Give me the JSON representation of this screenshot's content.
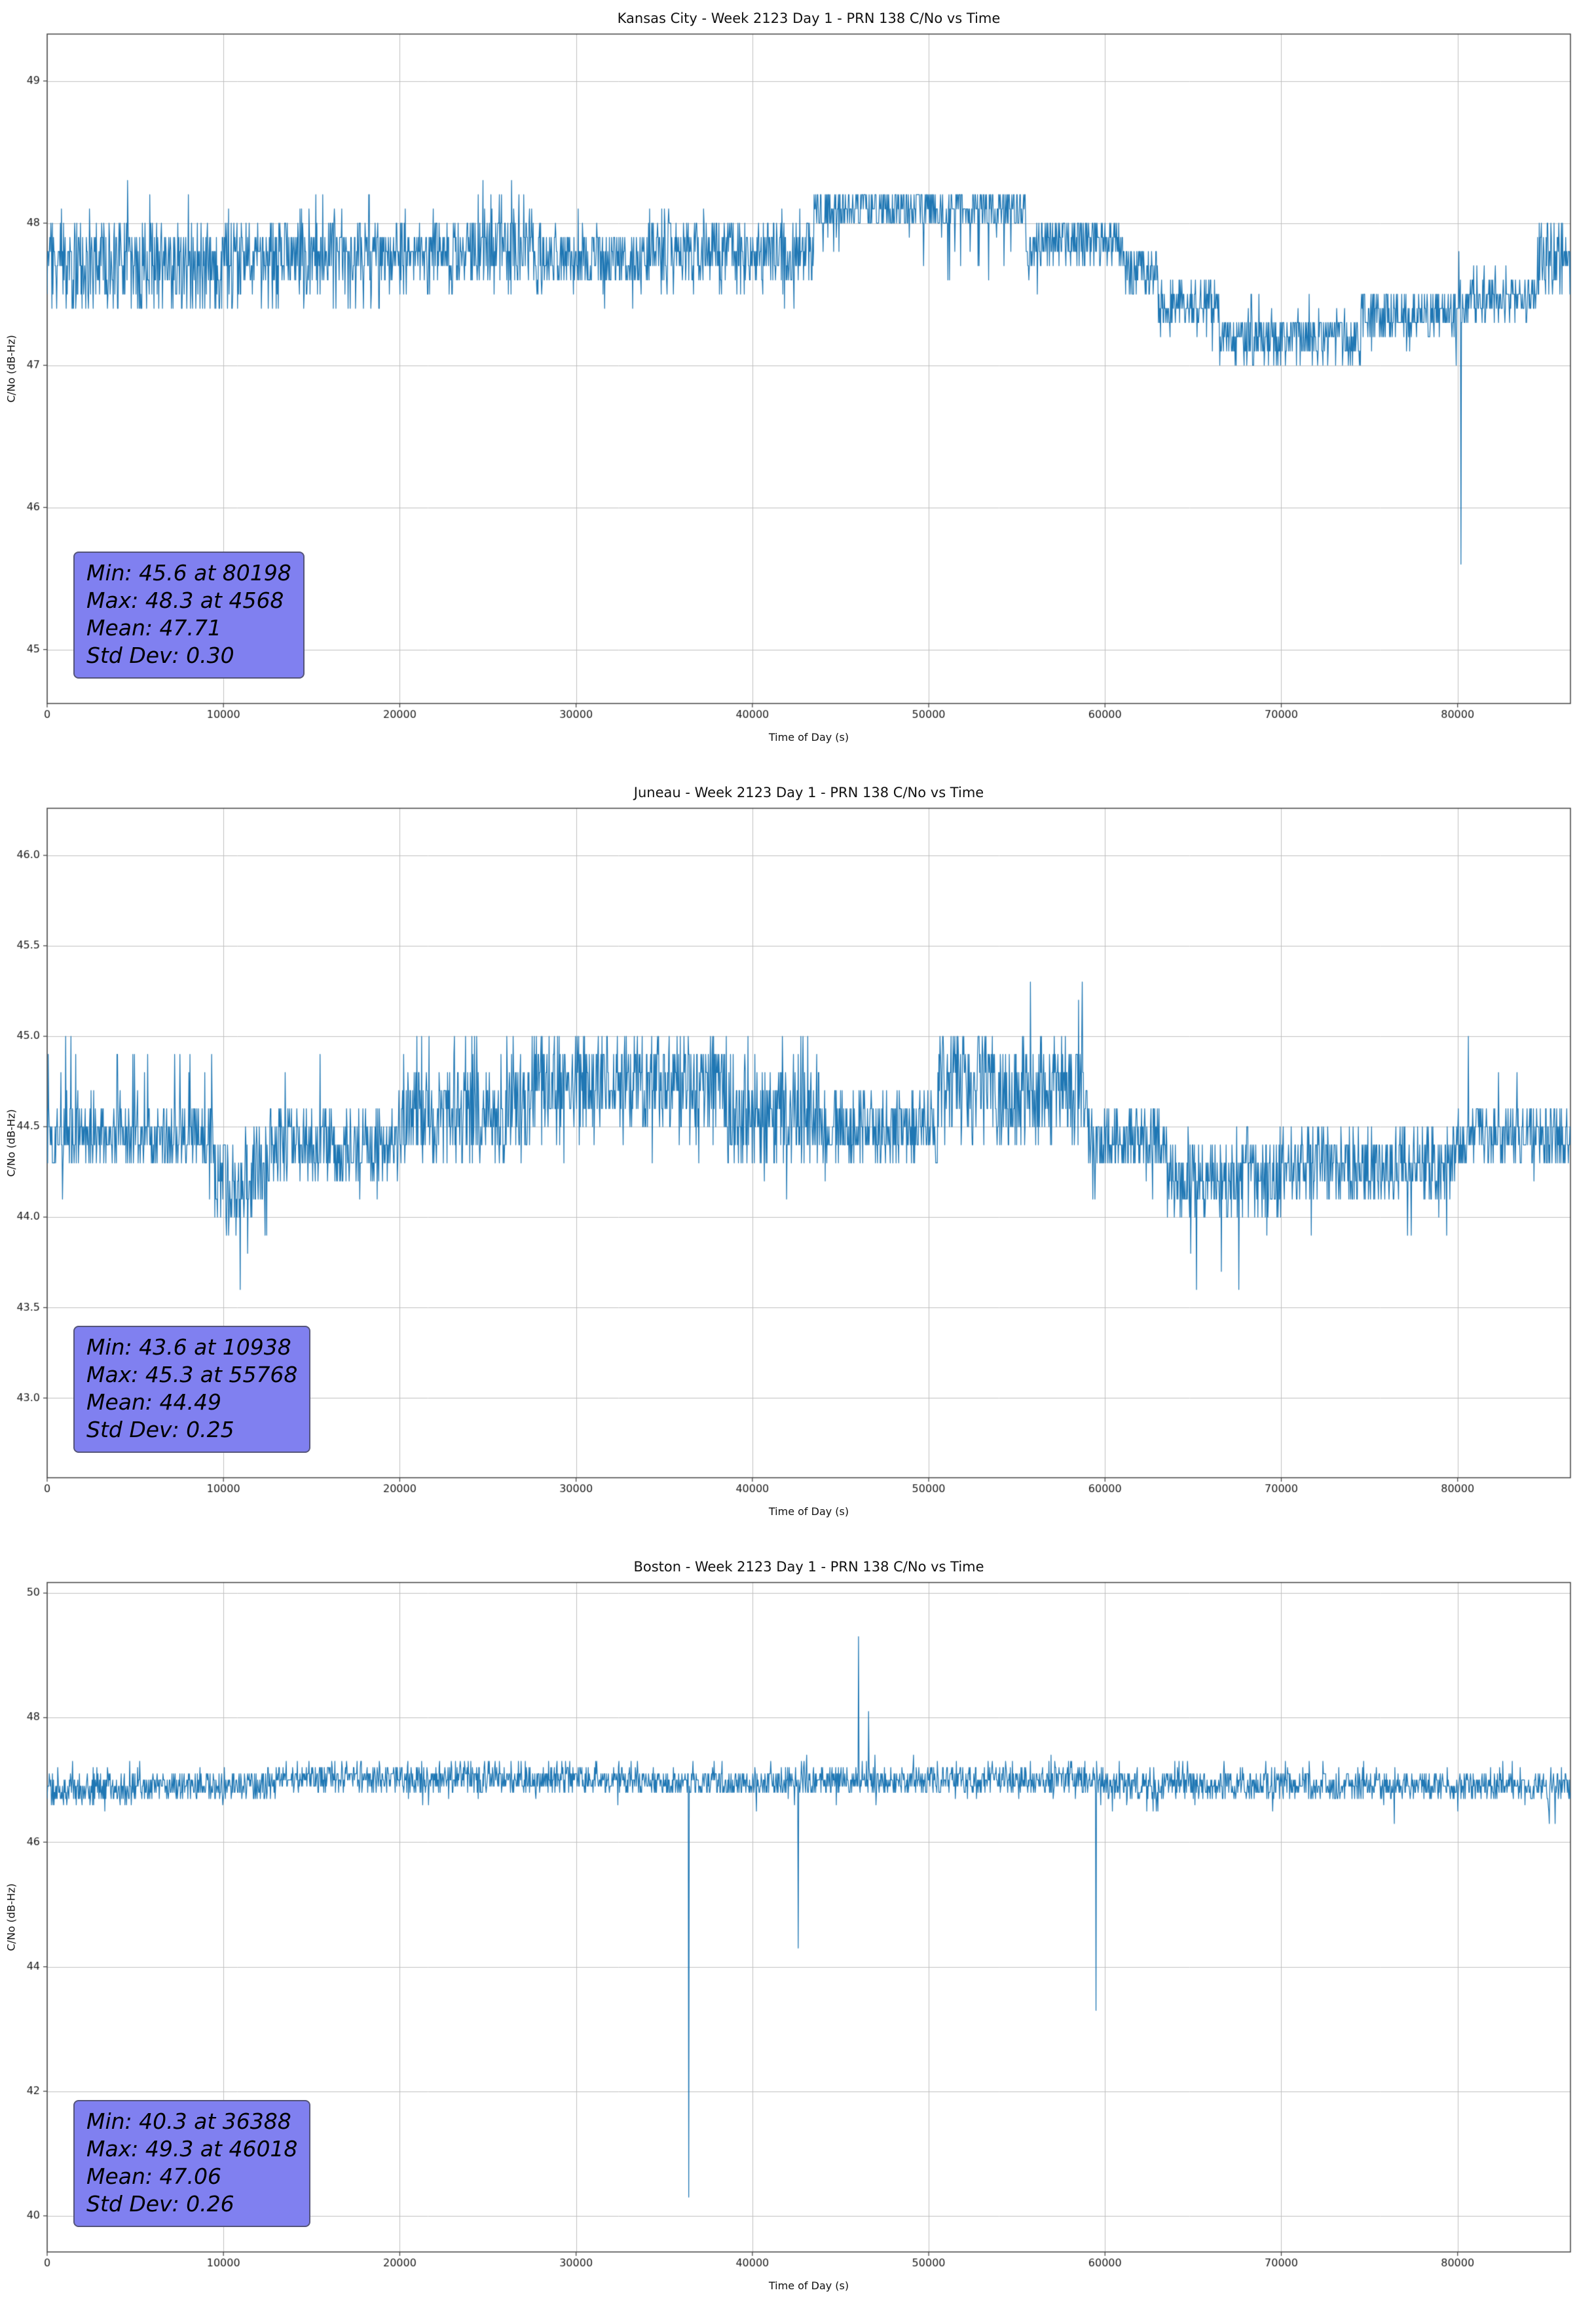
{
  "page": {
    "background": "#ffffff"
  },
  "style": {
    "accent_line": "#1f77b4",
    "grid_color": "#c0c0c0",
    "axis_color": "#444444",
    "tick_label_color": "#1a1a1a",
    "stats_box_bg": "#8080f0",
    "stats_box_border": "#55557a"
  },
  "chart_data": [
    {
      "id": "kansas-city",
      "type": "line",
      "title": "Kansas City - Week 2123 Day 1 - PRN 138 C/No vs Time",
      "xlabel": "Time of Day (s)",
      "ylabel": "C/No (dB-Hz)",
      "x_range": [
        0,
        86400
      ],
      "y_range": [
        44.62,
        49.33
      ],
      "xticks": [
        0,
        10000,
        20000,
        30000,
        40000,
        50000,
        60000,
        70000,
        80000
      ],
      "xtick_labels": [
        "0",
        "10000",
        "20000",
        "30000",
        "40000",
        "50000",
        "60000",
        "70000",
        "80000"
      ],
      "yticks": [
        45,
        46,
        47,
        48,
        49
      ],
      "ytick_labels": [
        "45",
        "46",
        "47",
        "48",
        "49"
      ],
      "line_color": "#1f77b4",
      "quantize": 0.1,
      "sample_step": 30,
      "grid": true,
      "stats": {
        "min": 45.6,
        "min_time": 80198,
        "max": 48.3,
        "max_time": 4568,
        "mean": 47.71,
        "std_dev": 0.3,
        "lines": [
          "Min: 45.6 at 80198",
          "Max: 48.3 at 4568",
          "Mean: 47.71",
          "Std Dev: 0.30"
        ]
      },
      "segments": [
        {
          "x0": 0,
          "x1": 11000,
          "lo": 47.6,
          "hi": 48.0,
          "down": 47.35,
          "down_p": 0.25,
          "up": 48.25,
          "up_p": 0.02
        },
        {
          "x0": 11000,
          "x1": 24000,
          "lo": 47.6,
          "hi": 48.0,
          "down": 47.4,
          "down_p": 0.12,
          "up": 48.25,
          "up_p": 0.03
        },
        {
          "x0": 24000,
          "x1": 28000,
          "lo": 47.6,
          "hi": 48.05,
          "down": 47.45,
          "down_p": 0.06,
          "up": 48.3,
          "up_p": 0.1
        },
        {
          "x0": 28000,
          "x1": 34000,
          "lo": 47.55,
          "hi": 47.95,
          "down": 47.4,
          "down_p": 0.04,
          "up": 48.1,
          "up_p": 0.02
        },
        {
          "x0": 34000,
          "x1": 43500,
          "lo": 47.6,
          "hi": 48.0,
          "down": 47.4,
          "down_p": 0.05,
          "up": 48.1,
          "up_p": 0.03
        },
        {
          "x0": 43500,
          "x1": 55500,
          "lo": 47.95,
          "hi": 48.25,
          "down": 47.6,
          "down_p": 0.06
        },
        {
          "x0": 55500,
          "x1": 61000,
          "lo": 47.7,
          "hi": 48.05,
          "down": 47.5,
          "down_p": 0.05
        },
        {
          "x0": 61000,
          "x1": 63000,
          "lo": 47.45,
          "hi": 47.85
        },
        {
          "x0": 63000,
          "x1": 66500,
          "lo": 47.25,
          "hi": 47.6,
          "down": 47.1,
          "down_p": 0.05
        },
        {
          "x0": 66500,
          "x1": 74500,
          "lo": 47.0,
          "hi": 47.35,
          "up": 47.5,
          "up_p": 0.04
        },
        {
          "x0": 74500,
          "x1": 80000,
          "lo": 47.2,
          "hi": 47.5,
          "down": 47.0,
          "down_p": 0.03
        },
        {
          "x0": 80000,
          "x1": 84500,
          "lo": 47.3,
          "hi": 47.6,
          "up": 47.8,
          "up_p": 0.03
        },
        {
          "x0": 84500,
          "x1": 86400,
          "lo": 47.5,
          "hi": 48.0
        }
      ],
      "spikes": [
        {
          "x": 4568,
          "v": 48.3
        },
        {
          "x": 80198,
          "v": 45.6
        }
      ]
    },
    {
      "id": "juneau",
      "type": "line",
      "title": "Juneau - Week 2123 Day 1 - PRN 138 C/No vs Time",
      "xlabel": "Time of Day (s)",
      "ylabel": "C/No (dB-Hz)",
      "x_range": [
        0,
        86400
      ],
      "y_range": [
        42.56,
        46.26
      ],
      "xticks": [
        0,
        10000,
        20000,
        30000,
        40000,
        50000,
        60000,
        70000,
        80000
      ],
      "xtick_labels": [
        "0",
        "10000",
        "20000",
        "30000",
        "40000",
        "50000",
        "60000",
        "70000",
        "80000"
      ],
      "yticks": [
        43.0,
        43.5,
        44.0,
        44.5,
        45.0,
        45.5,
        46.0
      ],
      "ytick_labels": [
        "43.0",
        "43.5",
        "44.0",
        "44.5",
        "45.0",
        "45.5",
        "46.0"
      ],
      "line_color": "#1f77b4",
      "quantize": 0.1,
      "sample_step": 30,
      "grid": true,
      "stats": {
        "min": 43.6,
        "min_time": 10938,
        "max": 45.3,
        "max_time": 55768,
        "mean": 44.49,
        "std_dev": 0.25,
        "lines": [
          "Min: 43.6 at 10938",
          "Max: 45.3 at 55768",
          "Mean: 44.49",
          "Std Dev: 0.25"
        ]
      },
      "segments": [
        {
          "x0": 0,
          "x1": 9500,
          "lo": 44.3,
          "hi": 44.6,
          "up": 45.0,
          "up_p": 0.07,
          "down": 44.1,
          "down_p": 0.02
        },
        {
          "x0": 9500,
          "x1": 12500,
          "lo": 44.0,
          "hi": 44.5,
          "down": 43.8,
          "down_p": 0.05
        },
        {
          "x0": 12500,
          "x1": 20000,
          "lo": 44.2,
          "hi": 44.6,
          "up": 44.9,
          "up_p": 0.02,
          "down": 44.0,
          "down_p": 0.02
        },
        {
          "x0": 20000,
          "x1": 27500,
          "lo": 44.3,
          "hi": 44.8,
          "up": 45.0,
          "up_p": 0.06
        },
        {
          "x0": 27500,
          "x1": 38500,
          "lo": 44.5,
          "hi": 45.0,
          "down": 44.3,
          "down_p": 0.04
        },
        {
          "x0": 38500,
          "x1": 44000,
          "lo": 44.3,
          "hi": 44.8,
          "up": 45.0,
          "up_p": 0.04,
          "down": 44.1,
          "down_p": 0.02
        },
        {
          "x0": 44000,
          "x1": 50500,
          "lo": 44.3,
          "hi": 44.7,
          "down": 44.0,
          "down_p": 0.01
        },
        {
          "x0": 50500,
          "x1": 59000,
          "lo": 44.4,
          "hi": 45.0,
          "up": 45.2,
          "up_p": 0.02
        },
        {
          "x0": 59000,
          "x1": 63500,
          "lo": 44.25,
          "hi": 44.6,
          "down": 44.0,
          "down_p": 0.03
        },
        {
          "x0": 63500,
          "x1": 70000,
          "lo": 44.0,
          "hi": 44.4,
          "up": 44.5,
          "up_p": 0.05,
          "down": 43.7,
          "down_p": 0.02
        },
        {
          "x0": 70000,
          "x1": 80000,
          "lo": 44.1,
          "hi": 44.5,
          "down": 43.9,
          "down_p": 0.02
        },
        {
          "x0": 80000,
          "x1": 86400,
          "lo": 44.3,
          "hi": 44.6,
          "up": 44.9,
          "up_p": 0.02,
          "down": 44.1,
          "down_p": 0.02
        }
      ],
      "spikes": [
        {
          "x": 10938,
          "v": 43.6
        },
        {
          "x": 55768,
          "v": 45.3
        },
        {
          "x": 58700,
          "v": 45.3
        },
        {
          "x": 65200,
          "v": 43.6
        },
        {
          "x": 67600,
          "v": 43.6
        },
        {
          "x": 80600,
          "v": 45.0
        }
      ]
    },
    {
      "id": "boston",
      "type": "line",
      "title": "Boston - Week 2123 Day 1 - PRN 138 C/No vs Time",
      "xlabel": "Time of Day (s)",
      "ylabel": "C/No (dB-Hz)",
      "x_range": [
        0,
        86400
      ],
      "y_range": [
        39.42,
        50.17
      ],
      "xticks": [
        0,
        10000,
        20000,
        30000,
        40000,
        50000,
        60000,
        70000,
        80000
      ],
      "xtick_labels": [
        "0",
        "10000",
        "20000",
        "30000",
        "40000",
        "50000",
        "60000",
        "70000",
        "80000"
      ],
      "yticks": [
        40,
        42,
        44,
        46,
        48,
        50
      ],
      "ytick_labels": [
        "40",
        "42",
        "44",
        "46",
        "48",
        "50"
      ],
      "line_color": "#1f77b4",
      "quantize": 0.1,
      "sample_step": 30,
      "grid": true,
      "stats": {
        "min": 40.3,
        "min_time": 36388,
        "max": 49.3,
        "max_time": 46018,
        "mean": 47.06,
        "std_dev": 0.26,
        "lines": [
          "Min: 40.3 at 36388",
          "Max: 49.3 at 46018",
          "Mean: 47.06",
          "Std Dev: 0.26"
        ]
      },
      "segments": [
        {
          "x0": 0,
          "x1": 5000,
          "lo": 46.6,
          "hi": 47.1,
          "up": 47.3,
          "up_p": 0.04,
          "down": 46.5,
          "down_p": 0.02
        },
        {
          "x0": 5000,
          "x1": 12500,
          "lo": 46.7,
          "hi": 47.1,
          "up": 47.3,
          "up_p": 0.03,
          "down": 46.4,
          "down_p": 0.01
        },
        {
          "x0": 12500,
          "x1": 33500,
          "lo": 46.8,
          "hi": 47.2,
          "up": 47.35,
          "up_p": 0.07,
          "down": 46.6,
          "down_p": 0.01
        },
        {
          "x0": 33500,
          "x1": 42000,
          "lo": 46.75,
          "hi": 47.15,
          "up": 47.3,
          "up_p": 0.04,
          "down": 46.5,
          "down_p": 0.01
        },
        {
          "x0": 42000,
          "x1": 60000,
          "lo": 46.8,
          "hi": 47.2,
          "up": 47.4,
          "up_p": 0.06,
          "down": 46.6,
          "down_p": 0.02
        },
        {
          "x0": 60000,
          "x1": 70500,
          "lo": 46.7,
          "hi": 47.15,
          "up": 47.3,
          "up_p": 0.04,
          "down": 46.4,
          "down_p": 0.02
        },
        {
          "x0": 70500,
          "x1": 86400,
          "lo": 46.7,
          "hi": 47.1,
          "up": 47.3,
          "up_p": 0.04,
          "down": 46.3,
          "down_p": 0.015
        }
      ],
      "spikes": [
        {
          "x": 36388,
          "v": 40.3
        },
        {
          "x": 42600,
          "v": 44.3
        },
        {
          "x": 46018,
          "v": 49.3
        },
        {
          "x": 46600,
          "v": 48.1
        },
        {
          "x": 59500,
          "v": 43.3
        }
      ]
    }
  ]
}
